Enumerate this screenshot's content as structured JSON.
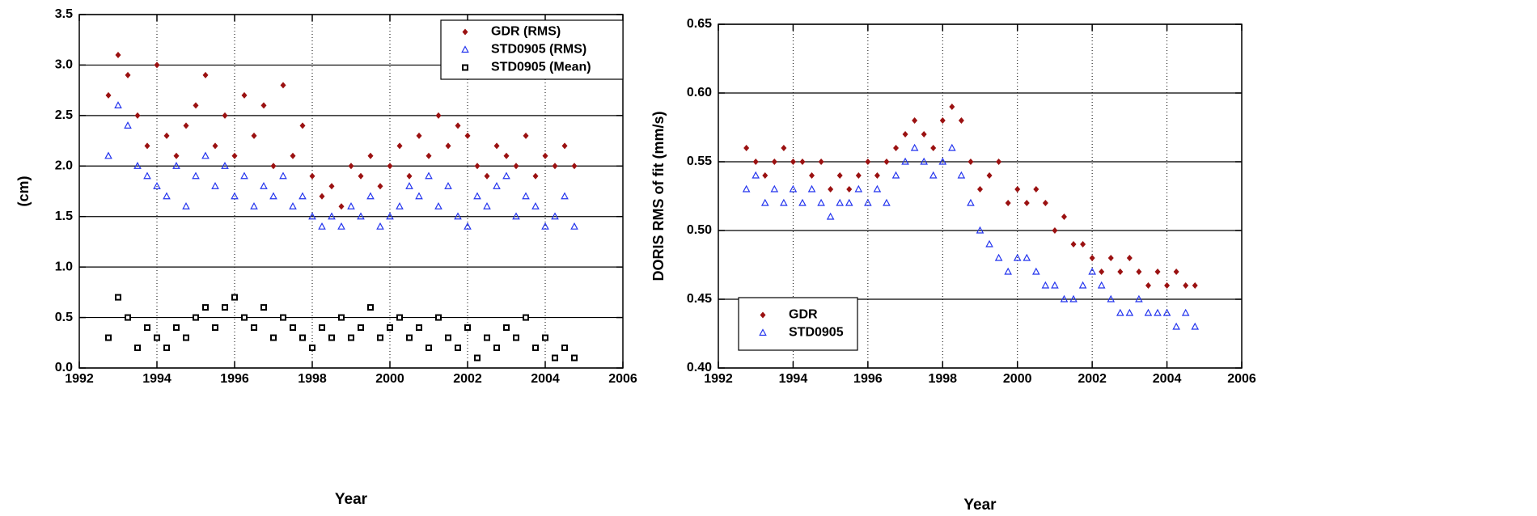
{
  "chart_data": [
    {
      "type": "scatter",
      "ylabel": "(cm)",
      "xlabel": "Year",
      "x": [
        1992.75,
        1993,
        1993.25,
        1993.5,
        1993.75,
        1994,
        1994.25,
        1994.5,
        1994.75,
        1995,
        1995.25,
        1995.5,
        1995.75,
        1996,
        1996.25,
        1996.5,
        1996.75,
        1997,
        1997.25,
        1997.5,
        1997.75,
        1998,
        1998.25,
        1998.5,
        1998.75,
        1999,
        1999.25,
        1999.5,
        1999.75,
        2000,
        2000.25,
        2000.5,
        2000.75,
        2001,
        2001.25,
        2001.5,
        2001.75,
        2002,
        2002.25,
        2002.5,
        2002.75,
        2003,
        2003.25,
        2003.5,
        2003.75,
        2004,
        2004.25,
        2004.5,
        2004.75
      ],
      "series": [
        {
          "name": "GDR (RMS)",
          "color": "#9b1111",
          "marker": "diamond",
          "values": [
            2.7,
            3.1,
            2.9,
            2.5,
            2.2,
            3.0,
            2.3,
            2.1,
            2.4,
            2.6,
            2.9,
            2.2,
            2.5,
            2.1,
            2.7,
            2.3,
            2.6,
            2.0,
            2.8,
            2.1,
            2.4,
            1.9,
            1.7,
            1.8,
            1.6,
            2.0,
            1.9,
            2.1,
            1.8,
            2.0,
            2.2,
            1.9,
            2.3,
            2.1,
            2.5,
            2.2,
            2.4,
            2.3,
            2.0,
            1.9,
            2.2,
            2.1,
            2.0,
            2.3,
            1.9,
            2.1,
            2.0,
            2.2,
            2.0
          ]
        },
        {
          "name": "STD0905 (RMS)",
          "color": "#2233ee",
          "marker": "triangle",
          "values": [
            2.1,
            2.6,
            2.4,
            2.0,
            1.9,
            1.8,
            1.7,
            2.0,
            1.6,
            1.9,
            2.1,
            1.8,
            2.0,
            1.7,
            1.9,
            1.6,
            1.8,
            1.7,
            1.9,
            1.6,
            1.7,
            1.5,
            1.4,
            1.5,
            1.4,
            1.6,
            1.5,
            1.7,
            1.4,
            1.5,
            1.6,
            1.8,
            1.7,
            1.9,
            1.6,
            1.8,
            1.5,
            1.4,
            1.7,
            1.6,
            1.8,
            1.9,
            1.5,
            1.7,
            1.6,
            1.4,
            1.5,
            1.7,
            1.4
          ]
        },
        {
          "name": "STD0905 (Mean)",
          "color": "#000000",
          "marker": "square",
          "values": [
            0.3,
            0.7,
            0.5,
            0.2,
            0.4,
            0.3,
            0.2,
            0.4,
            0.3,
            0.5,
            0.6,
            0.4,
            0.6,
            0.7,
            0.5,
            0.4,
            0.6,
            0.3,
            0.5,
            0.4,
            0.3,
            0.2,
            0.4,
            0.3,
            0.5,
            0.3,
            0.4,
            0.6,
            0.3,
            0.4,
            0.5,
            0.3,
            0.4,
            0.2,
            0.5,
            0.3,
            0.2,
            0.4,
            0.1,
            0.3,
            0.2,
            0.4,
            0.3,
            0.5,
            0.2,
            0.3,
            0.1,
            0.2,
            0.1
          ]
        }
      ],
      "xlim": [
        1992,
        2006
      ],
      "xticks": [
        1992,
        1994,
        1996,
        1998,
        2000,
        2002,
        2004,
        2006
      ],
      "ylim": [
        0,
        3.5
      ],
      "yticks": [
        {
          "value": 0,
          "label": "0.0"
        },
        0.5,
        {
          "value": 1,
          "label": "1.0"
        },
        1.5,
        {
          "value": 2,
          "label": "2.0"
        },
        2.5,
        {
          "value": 3,
          "label": "3.0"
        },
        3.5
      ],
      "grid": true,
      "legend": "upper right"
    },
    {
      "type": "scatter",
      "ylabel": "DORIS RMS of fit (mm/s)",
      "xlabel": "Year",
      "x": [
        1992.75,
        1993,
        1993.25,
        1993.5,
        1993.75,
        1994,
        1994.25,
        1994.5,
        1994.75,
        1995,
        1995.25,
        1995.5,
        1995.75,
        1996,
        1996.25,
        1996.5,
        1996.75,
        1997,
        1997.25,
        1997.5,
        1997.75,
        1998,
        1998.25,
        1998.5,
        1998.75,
        1999,
        1999.25,
        1999.5,
        1999.75,
        2000,
        2000.25,
        2000.5,
        2000.75,
        2001,
        2001.25,
        2001.5,
        2001.75,
        2002,
        2002.25,
        2002.5,
        2002.75,
        2003,
        2003.25,
        2003.5,
        2003.75,
        2004,
        2004.25,
        2004.5,
        2004.75
      ],
      "series": [
        {
          "name": "GDR",
          "color": "#9b1111",
          "marker": "diamond",
          "values": [
            0.56,
            0.55,
            0.54,
            0.55,
            0.56,
            0.55,
            0.55,
            0.54,
            0.55,
            0.53,
            0.54,
            0.53,
            0.54,
            0.55,
            0.54,
            0.55,
            0.56,
            0.57,
            0.58,
            0.57,
            0.56,
            0.58,
            0.59,
            0.58,
            0.55,
            0.53,
            0.54,
            0.55,
            0.52,
            0.53,
            0.52,
            0.53,
            0.52,
            0.5,
            0.51,
            0.49,
            0.49,
            0.48,
            0.47,
            0.48,
            0.47,
            0.48,
            0.47,
            0.46,
            0.47,
            0.46,
            0.47,
            0.46,
            0.46
          ]
        },
        {
          "name": "STD0905",
          "color": "#2233ee",
          "marker": "triangle",
          "values": [
            0.53,
            0.54,
            0.52,
            0.53,
            0.52,
            0.53,
            0.52,
            0.53,
            0.52,
            0.51,
            0.52,
            0.52,
            0.53,
            0.52,
            0.53,
            0.52,
            0.54,
            0.55,
            0.56,
            0.55,
            0.54,
            0.55,
            0.56,
            0.54,
            0.52,
            0.5,
            0.49,
            0.48,
            0.47,
            0.48,
            0.48,
            0.47,
            0.46,
            0.46,
            0.45,
            0.45,
            0.46,
            0.47,
            0.46,
            0.45,
            0.44,
            0.44,
            0.45,
            0.44,
            0.44,
            0.44,
            0.43,
            0.44,
            0.43
          ]
        }
      ],
      "xlim": [
        1992,
        2006
      ],
      "xticks": [
        1992,
        1994,
        1996,
        1998,
        2000,
        2002,
        2004,
        2006
      ],
      "ylim": [
        0.4,
        0.65
      ],
      "yticks": [
        {
          "value": 0.4,
          "label": "0.40"
        },
        0.45,
        {
          "value": 0.5,
          "label": "0.50"
        },
        0.55,
        {
          "value": 0.6,
          "label": "0.60"
        },
        0.65
      ],
      "grid": true,
      "legend": "lower left"
    }
  ]
}
